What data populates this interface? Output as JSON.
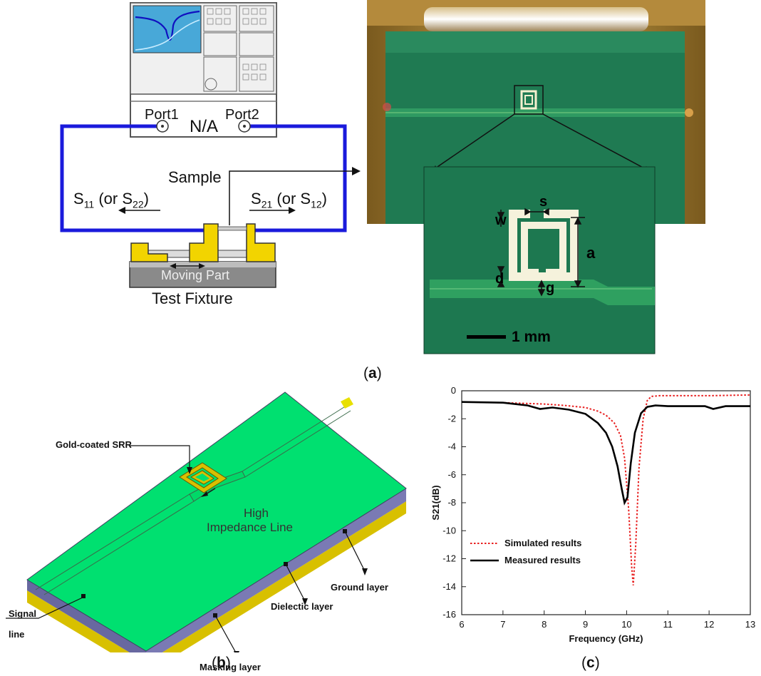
{
  "panel_a": {
    "analyzer_label": "N/A",
    "port1": "Port1",
    "port2": "Port2",
    "sample": "Sample",
    "s11_main": "S",
    "s11_sub": "11",
    "s11_paren": " (or S",
    "s11_sub2": "22",
    "s11_close": ")",
    "s21_main": "S",
    "s21_sub": "21",
    "s21_paren": " (or S",
    "s21_sub2": "12",
    "s21_close": ")",
    "moving_part": "Moving Part",
    "test_fixture": "Test Fixture",
    "dim_s": "s",
    "dim_w": "w",
    "dim_a": "a",
    "dim_d": "d",
    "dim_g": "g",
    "scale_label": "1 mm",
    "caption_open": "(",
    "caption_letter": "a",
    "caption_close": ")"
  },
  "panel_b": {
    "gold_srr": "Gold-coated SRR",
    "high_impedance_1": "High",
    "high_impedance_2": "Impedance Line",
    "signal_line_1": "Signal",
    "signal_line_2": "line",
    "masking_layer": "Masking layer",
    "dielectric_layer": "Dielectic layer",
    "ground_layer": "Ground layer",
    "caption_open": "(",
    "caption_letter": "b",
    "caption_close": ")"
  },
  "panel_c": {
    "caption_open": "(",
    "caption_letter": "c",
    "caption_close": ")"
  },
  "colors": {
    "cable_blue": "#1a1adc",
    "fixture_yellow": "#f2d400",
    "board_green": "#00e070",
    "pcb_green": "#1f7a52",
    "simulated": "#e82020",
    "measured": "#000000"
  },
  "chart_data": {
    "type": "line",
    "xlabel": "Frequency (GHz)",
    "ylabel": "S21(dB)",
    "xlim": [
      6,
      13
    ],
    "ylim": [
      -16,
      0
    ],
    "xticks": [
      6,
      7,
      8,
      9,
      10,
      11,
      12,
      13
    ],
    "yticks": [
      0,
      -2,
      -4,
      -6,
      -8,
      -10,
      -12,
      -14,
      -16
    ],
    "legend_position": "lower-left",
    "series": [
      {
        "name": "Simulated results",
        "style": "dotted",
        "color": "#e82020",
        "x": [
          6.0,
          7.0,
          8.0,
          8.5,
          9.0,
          9.3,
          9.5,
          9.7,
          9.85,
          9.95,
          10.05,
          10.12,
          10.16,
          10.22,
          10.3,
          10.4,
          10.5,
          10.6,
          10.8,
          11.0,
          12.0,
          13.0
        ],
        "y": [
          -0.8,
          -0.85,
          -0.95,
          -1.05,
          -1.2,
          -1.45,
          -1.75,
          -2.3,
          -3.2,
          -4.8,
          -8.5,
          -12.5,
          -13.9,
          -11.0,
          -5.5,
          -2.0,
          -0.7,
          -0.4,
          -0.35,
          -0.35,
          -0.35,
          -0.3
        ]
      },
      {
        "name": "Measured results",
        "style": "solid",
        "color": "#000000",
        "x": [
          6.0,
          7.0,
          7.6,
          7.9,
          8.2,
          8.6,
          9.0,
          9.3,
          9.5,
          9.65,
          9.78,
          9.88,
          9.95,
          10.02,
          10.1,
          10.2,
          10.35,
          10.5,
          10.7,
          11.0,
          11.5,
          11.9,
          12.1,
          12.4,
          13.0
        ],
        "y": [
          -0.8,
          -0.85,
          -1.05,
          -1.3,
          -1.2,
          -1.35,
          -1.65,
          -2.3,
          -3.0,
          -4.0,
          -5.4,
          -7.0,
          -8.0,
          -7.6,
          -5.2,
          -3.0,
          -1.6,
          -1.15,
          -1.05,
          -1.1,
          -1.1,
          -1.1,
          -1.3,
          -1.1,
          -1.1
        ]
      }
    ]
  }
}
